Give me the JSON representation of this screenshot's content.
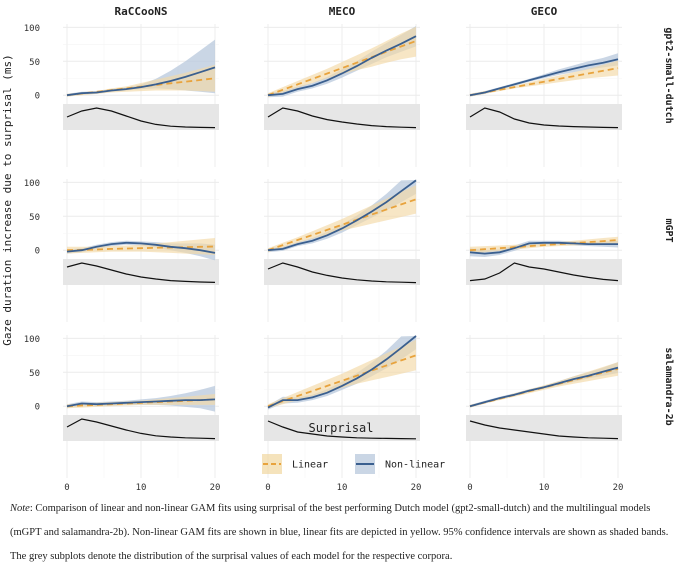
{
  "chart_data": {
    "type": "line",
    "title": "",
    "xlabel": "Surprisal",
    "ylabel": "Gaze duration increase due to surprisal (ms)",
    "xlim": [
      0,
      20
    ],
    "ylim": [
      -10,
      105
    ],
    "x_ticks": [
      0,
      10,
      20
    ],
    "y_ticks": [
      0,
      50,
      100
    ],
    "columns": [
      "RaCCooNS",
      "MECO",
      "GECO"
    ],
    "rows": [
      "gpt2-small-dutch",
      "mGPT",
      "salamandra-2b"
    ],
    "legend": [
      {
        "name": "Linear",
        "color": "#e8a33d",
        "style": "dashed",
        "band": "#f2d9a6"
      },
      {
        "name": "Non-linear",
        "color": "#3a5f8f",
        "style": "solid",
        "band": "#b8c8dc"
      }
    ],
    "x": [
      0,
      2,
      4,
      6,
      8,
      10,
      12,
      14,
      16,
      18,
      20
    ],
    "panels": [
      {
        "row": "gpt2-small-dutch",
        "corpus": "RaCCooNS",
        "linear": [
          0,
          2.5,
          5,
          7.5,
          10,
          12.5,
          15,
          17.5,
          20,
          22.5,
          25
        ],
        "linear_lo": [
          -2,
          0,
          2,
          4,
          5,
          6,
          7,
          7,
          7,
          6,
          5
        ],
        "linear_hi": [
          2,
          4,
          6,
          10,
          13,
          18,
          23,
          28,
          33,
          39,
          45
        ],
        "nonlinear": [
          0,
          3,
          4,
          7,
          9,
          12,
          16,
          21,
          27,
          34,
          41
        ],
        "nonlinear_lo": [
          -2,
          1,
          2,
          5,
          7,
          9,
          10,
          9,
          7,
          5,
          3
        ],
        "nonlinear_hi": [
          2,
          5,
          6,
          9,
          11,
          16,
          24,
          36,
          50,
          66,
          82
        ],
        "density": [
          0.55,
          0.85,
          1.0,
          0.85,
          0.6,
          0.35,
          0.18,
          0.09,
          0.05,
          0.03,
          0.02
        ]
      },
      {
        "row": "gpt2-small-dutch",
        "corpus": "MECO",
        "linear": [
          0,
          8,
          16,
          24,
          32,
          40,
          48,
          56,
          64,
          72,
          80
        ],
        "linear_lo": [
          -3,
          4,
          11,
          18,
          25,
          31,
          37,
          42,
          48,
          53,
          57
        ],
        "linear_hi": [
          3,
          12,
          21,
          30,
          39,
          49,
          59,
          69,
          80,
          91,
          101
        ],
        "nonlinear": [
          0,
          2,
          9,
          14,
          22,
          32,
          43,
          55,
          66,
          76,
          87
        ],
        "nonlinear_lo": [
          -3,
          -2,
          5,
          10,
          17,
          26,
          36,
          46,
          56,
          64,
          72
        ],
        "nonlinear_hi": [
          3,
          6,
          13,
          18,
          27,
          38,
          50,
          64,
          77,
          89,
          102
        ],
        "density": [
          0.55,
          1.0,
          0.85,
          0.6,
          0.42,
          0.3,
          0.2,
          0.12,
          0.07,
          0.04,
          0.02
        ]
      },
      {
        "row": "gpt2-small-dutch",
        "corpus": "GECO",
        "linear": [
          0,
          4,
          8,
          12,
          16,
          20,
          24,
          28,
          32,
          36,
          40
        ],
        "linear_lo": [
          -2,
          2,
          6,
          10,
          13,
          16,
          19,
          22,
          25,
          27,
          29
        ],
        "linear_hi": [
          2,
          6,
          10,
          14,
          19,
          24,
          29,
          34,
          39,
          45,
          51
        ],
        "nonlinear": [
          0,
          4,
          10,
          16,
          22,
          28,
          34,
          39,
          44,
          48,
          53
        ],
        "nonlinear_lo": [
          -2,
          2,
          8,
          14,
          20,
          25,
          30,
          34,
          38,
          41,
          44
        ],
        "nonlinear_hi": [
          2,
          6,
          12,
          18,
          24,
          31,
          38,
          44,
          50,
          55,
          62
        ],
        "density": [
          0.55,
          1.0,
          0.8,
          0.45,
          0.25,
          0.15,
          0.1,
          0.07,
          0.05,
          0.03,
          0.02
        ]
      },
      {
        "row": "mGPT",
        "corpus": "RaCCooNS",
        "linear": [
          0,
          0.5,
          1,
          2,
          2.5,
          3,
          3.5,
          4,
          4.5,
          5,
          5.5
        ],
        "linear_lo": [
          -5,
          -4,
          -3,
          -2,
          -2,
          -2,
          -3,
          -4,
          -5,
          -6,
          -7
        ],
        "linear_hi": [
          5,
          5,
          5,
          6,
          7,
          8,
          10,
          12,
          14,
          16,
          18
        ],
        "nonlinear": [
          -2,
          0,
          5,
          9,
          11,
          10,
          8,
          5,
          3,
          0,
          -4
        ],
        "nonlinear_lo": [
          -5,
          -3,
          2,
          6,
          8,
          7,
          4,
          0,
          -4,
          -9,
          -15
        ],
        "nonlinear_hi": [
          1,
          3,
          8,
          12,
          14,
          13,
          12,
          10,
          10,
          10,
          8
        ],
        "density": [
          0.8,
          1.0,
          0.85,
          0.65,
          0.45,
          0.3,
          0.2,
          0.12,
          0.08,
          0.05,
          0.03
        ]
      },
      {
        "row": "mGPT",
        "corpus": "MECO",
        "linear": [
          0,
          7.5,
          15,
          22.5,
          30,
          37.5,
          45,
          52.5,
          60,
          67.5,
          75
        ],
        "linear_lo": [
          -3,
          4,
          11,
          17,
          23,
          29,
          34,
          39,
          44,
          49,
          54
        ],
        "linear_hi": [
          3,
          11,
          19,
          28,
          37,
          46,
          56,
          66,
          76,
          86,
          96
        ],
        "nonlinear": [
          0,
          2,
          9,
          14,
          22,
          32,
          44,
          57,
          71,
          87,
          103
        ],
        "nonlinear_lo": [
          -3,
          -1,
          6,
          10,
          17,
          26,
          37,
          48,
          59,
          71,
          83
        ],
        "nonlinear_hi": [
          3,
          5,
          12,
          18,
          27,
          38,
          51,
          66,
          83,
          103,
          123
        ],
        "density": [
          0.7,
          1.0,
          0.8,
          0.55,
          0.38,
          0.25,
          0.16,
          0.1,
          0.06,
          0.04,
          0.02
        ]
      },
      {
        "row": "mGPT",
        "corpus": "GECO",
        "linear": [
          0,
          1.5,
          3,
          4.5,
          6,
          7.5,
          9,
          10.5,
          12,
          13.5,
          15
        ],
        "linear_lo": [
          -5,
          -3,
          -1,
          1,
          3,
          5,
          6,
          7,
          8,
          9,
          10
        ],
        "linear_hi": [
          5,
          6,
          7,
          8,
          9,
          10,
          12,
          14,
          16,
          18,
          20
        ],
        "nonlinear": [
          -3,
          -5,
          -3,
          3,
          10,
          11,
          11,
          10,
          9,
          9,
          9
        ],
        "nonlinear_lo": [
          -9,
          -10,
          -7,
          -1,
          6,
          8,
          8,
          7,
          6,
          5,
          4
        ],
        "nonlinear_hi": [
          3,
          0,
          1,
          7,
          14,
          14,
          14,
          13,
          12,
          13,
          14
        ],
        "density": [
          0.12,
          0.2,
          0.5,
          1.0,
          0.8,
          0.7,
          0.55,
          0.4,
          0.28,
          0.18,
          0.12
        ]
      },
      {
        "row": "salamandra-2b",
        "corpus": "RaCCooNS",
        "linear": [
          0,
          1,
          2,
          3,
          4,
          5,
          6,
          7,
          8,
          9,
          10
        ],
        "linear_lo": [
          -3,
          -2,
          -1,
          0,
          1,
          2,
          2,
          2,
          2,
          2,
          2
        ],
        "linear_hi": [
          3,
          4,
          5,
          6,
          7,
          8,
          10,
          12,
          14,
          16,
          18
        ],
        "nonlinear": [
          0,
          4,
          3,
          4,
          5,
          6,
          7,
          8,
          9,
          9,
          10
        ],
        "nonlinear_lo": [
          -3,
          1,
          0,
          1,
          2,
          2,
          2,
          1,
          -1,
          -3,
          -8
        ],
        "nonlinear_hi": [
          3,
          7,
          6,
          7,
          8,
          10,
          12,
          15,
          19,
          24,
          30
        ],
        "density": [
          0.6,
          1.0,
          0.85,
          0.65,
          0.45,
          0.28,
          0.16,
          0.1,
          0.06,
          0.04,
          0.02
        ]
      },
      {
        "row": "salamandra-2b",
        "corpus": "MECO",
        "linear": [
          0,
          7.5,
          15,
          22.5,
          30,
          37.5,
          45,
          52.5,
          60,
          67.5,
          75
        ],
        "linear_lo": [
          -3,
          3,
          9,
          15,
          21,
          27,
          33,
          38,
          43,
          48,
          53
        ],
        "linear_hi": [
          3,
          12,
          21,
          30,
          39,
          48,
          58,
          68,
          78,
          88,
          98
        ],
        "nonlinear": [
          -2,
          9,
          9,
          13,
          20,
          30,
          41,
          54,
          69,
          86,
          105
        ],
        "nonlinear_lo": [
          -5,
          4,
          5,
          9,
          15,
          24,
          33,
          44,
          56,
          69,
          84
        ],
        "nonlinear_hi": [
          1,
          14,
          13,
          17,
          25,
          36,
          49,
          64,
          82,
          103,
          126
        ],
        "density": [
          0.9,
          0.6,
          0.35,
          0.25,
          0.15,
          0.1,
          0.06,
          0.04,
          0.03,
          0.02,
          0.01
        ]
      },
      {
        "row": "salamandra-2b",
        "corpus": "GECO",
        "linear": [
          0,
          5.5,
          11,
          16.5,
          22,
          27.5,
          33,
          38.5,
          44,
          49.5,
          55
        ],
        "linear_lo": [
          -2,
          4,
          9,
          14,
          19,
          24,
          29,
          33,
          37,
          41,
          45
        ],
        "linear_hi": [
          2,
          7,
          13,
          19,
          25,
          31,
          37,
          44,
          51,
          58,
          65
        ],
        "nonlinear": [
          0,
          6,
          12,
          17,
          23,
          28,
          34,
          40,
          45,
          51,
          57
        ],
        "nonlinear_lo": [
          -2,
          4,
          10,
          15,
          21,
          26,
          31,
          36,
          41,
          45,
          49
        ],
        "nonlinear_hi": [
          2,
          8,
          14,
          19,
          25,
          30,
          37,
          44,
          50,
          57,
          65
        ],
        "density": [
          0.9,
          0.7,
          0.55,
          0.45,
          0.35,
          0.25,
          0.15,
          0.1,
          0.06,
          0.04,
          0.02
        ]
      }
    ]
  },
  "note": {
    "lead": "Note",
    "text": ": Comparison of linear and non-linear GAM fits using surprisal of the best performing Dutch model (gpt2-small-dutch) and the multilingual models (mGPT and salamandra-2b). Non-linear GAM fits are shown in blue, linear fits are depicted in yellow. 95% confidence intervals are shown as shaded bands. The grey subplots denote the distribution of the surprisal values of each model for the respective corpora."
  }
}
